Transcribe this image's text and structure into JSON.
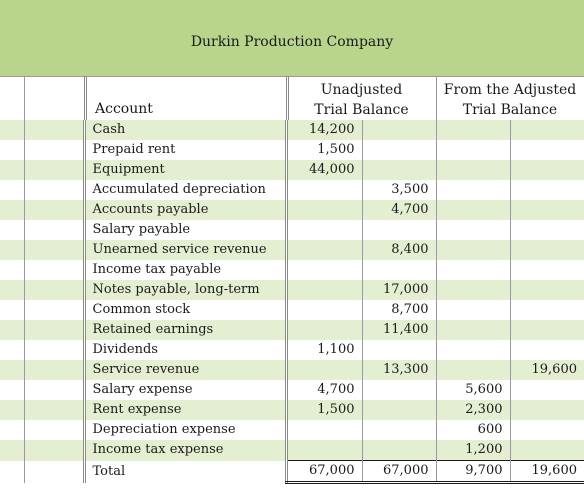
{
  "company": "Durkin Production Company",
  "headers": {
    "account": "Account",
    "unadjusted_line1": "Unadjusted",
    "unadjusted_line2": "Trial Balance",
    "adjusted_line1": "From the Adjusted",
    "adjusted_line2": "Trial Balance"
  },
  "rows": [
    {
      "account": "Cash",
      "ud": "14,200",
      "uc": "",
      "ad": "",
      "ac": ""
    },
    {
      "account": "Prepaid rent",
      "ud": "1,500",
      "uc": "",
      "ad": "",
      "ac": ""
    },
    {
      "account": "Equipment",
      "ud": "44,000",
      "uc": "",
      "ad": "",
      "ac": ""
    },
    {
      "account": "Accumulated depreciation",
      "ud": "",
      "uc": "3,500",
      "ad": "",
      "ac": ""
    },
    {
      "account": "Accounts payable",
      "ud": "",
      "uc": "4,700",
      "ad": "",
      "ac": ""
    },
    {
      "account": "Salary payable",
      "ud": "",
      "uc": "",
      "ad": "",
      "ac": ""
    },
    {
      "account": "Unearned service revenue",
      "ud": "",
      "uc": "8,400",
      "ad": "",
      "ac": ""
    },
    {
      "account": "Income tax payable",
      "ud": "",
      "uc": "",
      "ad": "",
      "ac": ""
    },
    {
      "account": "Notes payable, long-term",
      "ud": "",
      "uc": "17,000",
      "ad": "",
      "ac": ""
    },
    {
      "account": "Common stock",
      "ud": "",
      "uc": "8,700",
      "ad": "",
      "ac": ""
    },
    {
      "account": "Retained earnings",
      "ud": "",
      "uc": "11,400",
      "ad": "",
      "ac": ""
    },
    {
      "account": "Dividends",
      "ud": "1,100",
      "uc": "",
      "ad": "",
      "ac": ""
    },
    {
      "account": "Service revenue",
      "ud": "",
      "uc": "13,300",
      "ad": "",
      "ac": "19,600"
    },
    {
      "account": "Salary expense",
      "ud": "4,700",
      "uc": "",
      "ad": "5,600",
      "ac": ""
    },
    {
      "account": "Rent expense",
      "ud": "1,500",
      "uc": "",
      "ad": "2,300",
      "ac": ""
    },
    {
      "account": "Depreciation expense",
      "ud": "",
      "uc": "",
      "ad": "600",
      "ac": ""
    },
    {
      "account": "Income tax expense",
      "ud": "",
      "uc": "",
      "ad": "1,200",
      "ac": ""
    },
    {
      "account": "Total",
      "ud": "67,000",
      "uc": "67,000",
      "ad": "9,700",
      "ac": "19,600"
    }
  ],
  "colors": {
    "banner": "#b9d58c",
    "stripe": "#e4efd2"
  }
}
